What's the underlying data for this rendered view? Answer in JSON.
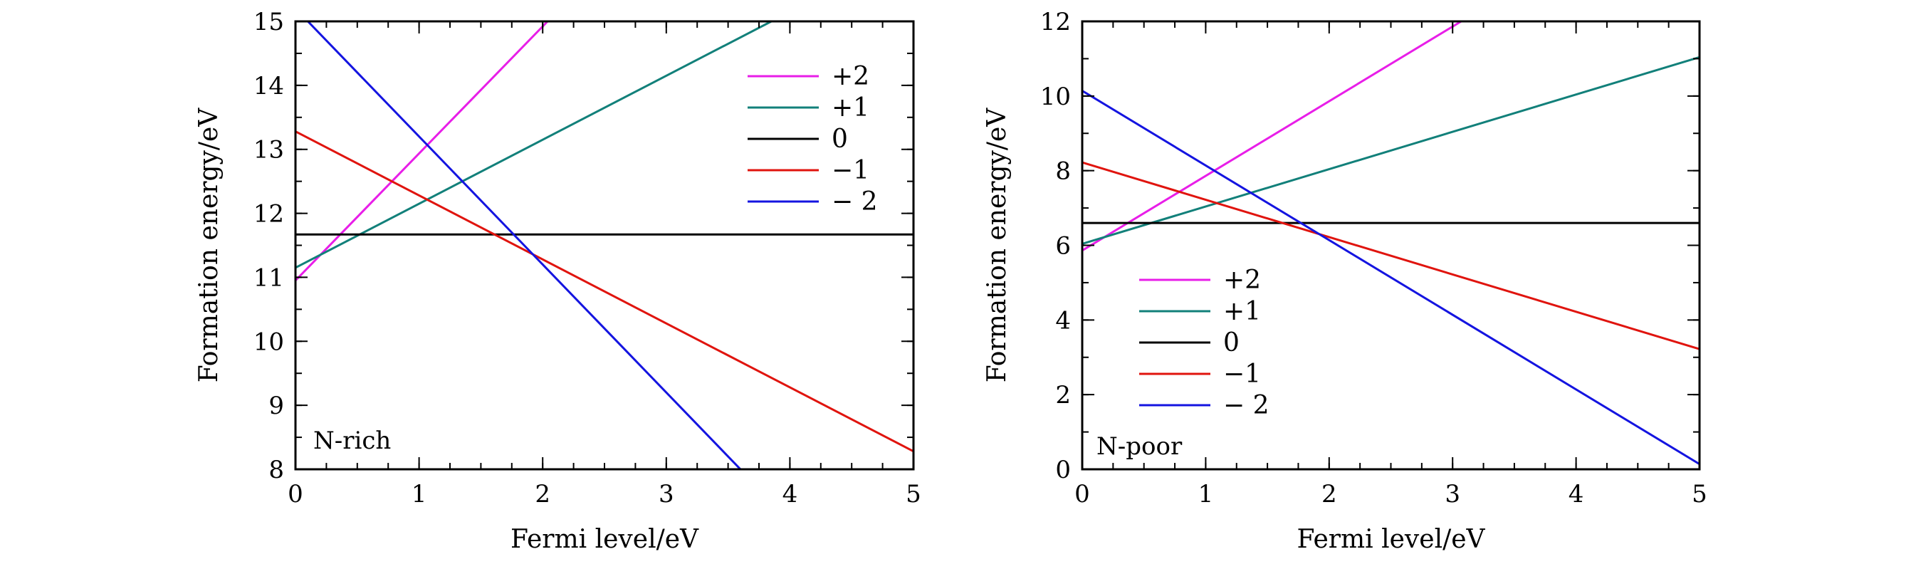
{
  "chart_data": [
    {
      "type": "line",
      "annotation": "N-rich",
      "xlabel": "Fermi level/eV",
      "ylabel": "Formation energy/eV",
      "xlim": [
        0,
        5
      ],
      "ylim": [
        8,
        15
      ],
      "x_ticks": [
        0,
        1,
        2,
        3,
        4,
        5
      ],
      "x_tick_labels": [
        "0",
        "1",
        "2",
        "3",
        "4",
        "5"
      ],
      "y_ticks": [
        8,
        9,
        10,
        11,
        12,
        13,
        14,
        15
      ],
      "y_tick_labels": [
        "8",
        "9",
        "10",
        "11",
        "12",
        "13",
        "14",
        "15"
      ],
      "legend_position": "top-right",
      "series": [
        {
          "name": "+2",
          "color": "#e81ee8",
          "x": [
            0,
            2.04
          ],
          "y": [
            10.95,
            15
          ]
        },
        {
          "name": "+1",
          "color": "#12807a",
          "x": [
            0,
            3.85
          ],
          "y": [
            11.15,
            15
          ]
        },
        {
          "name": "0",
          "color": "#000000",
          "x": [
            0,
            5
          ],
          "y": [
            11.67,
            11.67
          ]
        },
        {
          "name": "−1",
          "color": "#e0140e",
          "x": [
            0,
            5
          ],
          "y": [
            13.28,
            8.28
          ]
        },
        {
          "name": "− 2",
          "color": "#1414e0",
          "x": [
            0.1,
            3.6
          ],
          "y": [
            15,
            8
          ]
        }
      ]
    },
    {
      "type": "line",
      "annotation": "N-poor",
      "xlabel": "Fermi level/eV",
      "ylabel": "Formation energy/eV",
      "xlim": [
        0,
        5
      ],
      "ylim": [
        0,
        12
      ],
      "x_ticks": [
        0,
        1,
        2,
        3,
        4,
        5
      ],
      "x_tick_labels": [
        "0",
        "1",
        "2",
        "3",
        "4",
        "5"
      ],
      "y_ticks": [
        0,
        2,
        4,
        6,
        8,
        10,
        12
      ],
      "y_tick_labels": [
        "0",
        "2",
        "4",
        "6",
        "8",
        "10",
        "12"
      ],
      "legend_position": "bottom-left",
      "series": [
        {
          "name": "+2",
          "color": "#e81ee8",
          "x": [
            0,
            3.07
          ],
          "y": [
            5.86,
            12
          ]
        },
        {
          "name": "+1",
          "color": "#12807a",
          "x": [
            0,
            5
          ],
          "y": [
            6.04,
            11.04
          ]
        },
        {
          "name": "0",
          "color": "#000000",
          "x": [
            0,
            5
          ],
          "y": [
            6.6,
            6.6
          ]
        },
        {
          "name": "−1",
          "color": "#e0140e",
          "x": [
            0,
            5
          ],
          "y": [
            8.22,
            3.22
          ]
        },
        {
          "name": "− 2",
          "color": "#1414e0",
          "x": [
            0,
            5
          ],
          "y": [
            10.14,
            0.14
          ]
        }
      ]
    }
  ]
}
